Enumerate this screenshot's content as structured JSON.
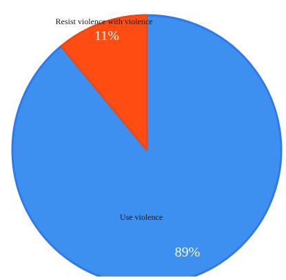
{
  "chart_data": {
    "type": "pie",
    "slices": [
      {
        "label": "Use violence",
        "value": 89,
        "value_label": "89%",
        "color": "#3d8ff0",
        "edge_color": "#2f7ae8"
      },
      {
        "label": "Resist violence with violence",
        "value": 11,
        "value_label": "11%",
        "color": "#ff4c12",
        "edge_color": "#e84a18"
      }
    ],
    "start_angle": "12 o'clock",
    "direction": "clockwise",
    "legend": "none"
  }
}
